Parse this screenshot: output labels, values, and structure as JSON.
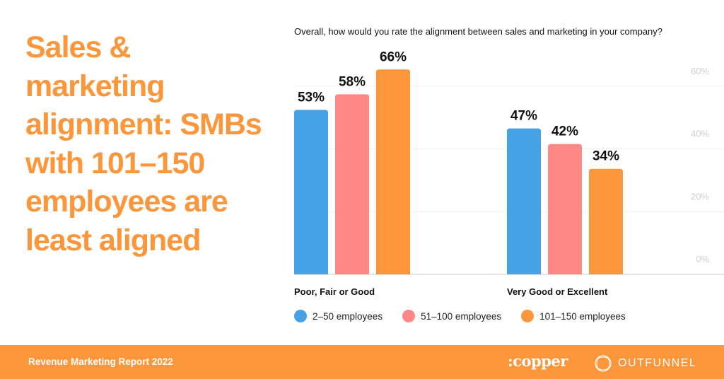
{
  "headline": "Sales & marketing alignment: SMBs with 101–150 employees are least aligned",
  "chart_data": {
    "type": "bar",
    "title": "Overall, how would you rate the alignment between sales and marketing in your company?",
    "categories": [
      "Poor, Fair or Good",
      "Very Good or Excellent"
    ],
    "series": [
      {
        "name": "2–50 employees",
        "color": "#45a3e5",
        "values": [
          53,
          47
        ]
      },
      {
        "name": "51–100 employees",
        "color": "#fe8886",
        "values": [
          58,
          42
        ]
      },
      {
        "name": "101–150 employees",
        "color": "#fb973a",
        "values": [
          66,
          34
        ]
      }
    ],
    "data_labels": [
      [
        "53%",
        "47%"
      ],
      [
        "58%",
        "42%"
      ],
      [
        "66%",
        "34%"
      ]
    ],
    "yticks": [
      "0%",
      "20%",
      "40%",
      "60%"
    ],
    "ylim": [
      0,
      60
    ],
    "legend": "bottom",
    "grid": true
  },
  "footer": {
    "report": "Revenue Marketing Report 2022",
    "logo_copper": ":copper",
    "logo_outfunnel": "OUTFUNNEL"
  }
}
